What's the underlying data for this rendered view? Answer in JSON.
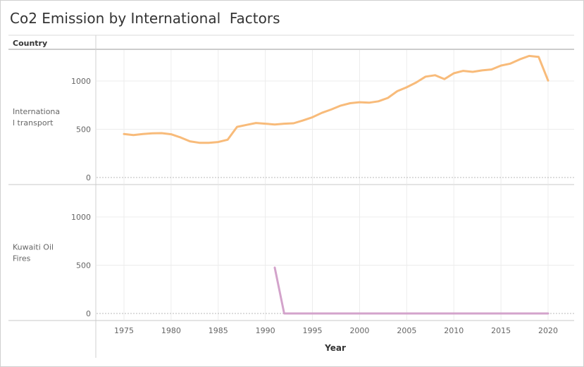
{
  "title": "Co2 Emission by International  Factors",
  "row_header": "Country",
  "colors": {
    "series_1": "#f8bb7a",
    "series_2": "#d3a3cb",
    "grid": "#ececec",
    "zero_line": "#b8b8b8",
    "divider": "#c8c8c8",
    "text": "#666666"
  },
  "chart_data": {
    "type": "line",
    "xlabel": "Year",
    "xlim": [
      1972,
      2023
    ],
    "ylim": [
      -50,
      1350
    ],
    "x_ticks": [
      1975,
      1980,
      1985,
      1990,
      1995,
      2000,
      2005,
      2010,
      2015,
      2020
    ],
    "x_tick_labels": [
      "1975",
      "1980",
      "1985",
      "1990",
      "1995",
      "2000",
      "2005",
      "2010",
      "2015",
      "2020"
    ],
    "y_ticks": [
      0,
      500,
      1000
    ],
    "y_tick_labels": [
      "0",
      "500",
      "1000"
    ],
    "grid": true,
    "panels": [
      {
        "label_line1": "Internationa",
        "label_line2": "l transport",
        "color": "#f8bb7a",
        "x": [
          1975,
          1976,
          1977,
          1978,
          1979,
          1980,
          1981,
          1982,
          1983,
          1984,
          1985,
          1986,
          1987,
          1988,
          1989,
          1990,
          1991,
          1992,
          1993,
          1994,
          1995,
          1996,
          1997,
          1998,
          1999,
          2000,
          2001,
          2002,
          2003,
          2004,
          2005,
          2006,
          2007,
          2008,
          2009,
          2010,
          2011,
          2012,
          2013,
          2014,
          2015,
          2016,
          2017,
          2018,
          2019,
          2020
        ],
        "y": [
          450,
          440,
          450,
          458,
          460,
          448,
          415,
          375,
          360,
          360,
          368,
          392,
          525,
          545,
          565,
          558,
          550,
          558,
          562,
          592,
          625,
          670,
          705,
          745,
          770,
          780,
          775,
          790,
          825,
          895,
          935,
          985,
          1045,
          1060,
          1020,
          1080,
          1105,
          1095,
          1110,
          1120,
          1160,
          1180,
          1225,
          1260,
          1250,
          1005
        ]
      },
      {
        "label_line1": "Kuwaiti Oil",
        "label_line2": "Fires",
        "color": "#d3a3cb",
        "x": [
          1991,
          1992,
          1993,
          1994,
          1995,
          1996,
          1997,
          1998,
          1999,
          2000,
          2001,
          2002,
          2003,
          2004,
          2005,
          2006,
          2007,
          2008,
          2009,
          2010,
          2011,
          2012,
          2013,
          2014,
          2015,
          2016,
          2017,
          2018,
          2019,
          2020
        ],
        "y": [
          475,
          0,
          0,
          0,
          0,
          0,
          0,
          0,
          0,
          0,
          0,
          0,
          0,
          0,
          0,
          0,
          0,
          0,
          0,
          0,
          0,
          0,
          0,
          0,
          0,
          0,
          0,
          0,
          0,
          0
        ]
      }
    ]
  }
}
